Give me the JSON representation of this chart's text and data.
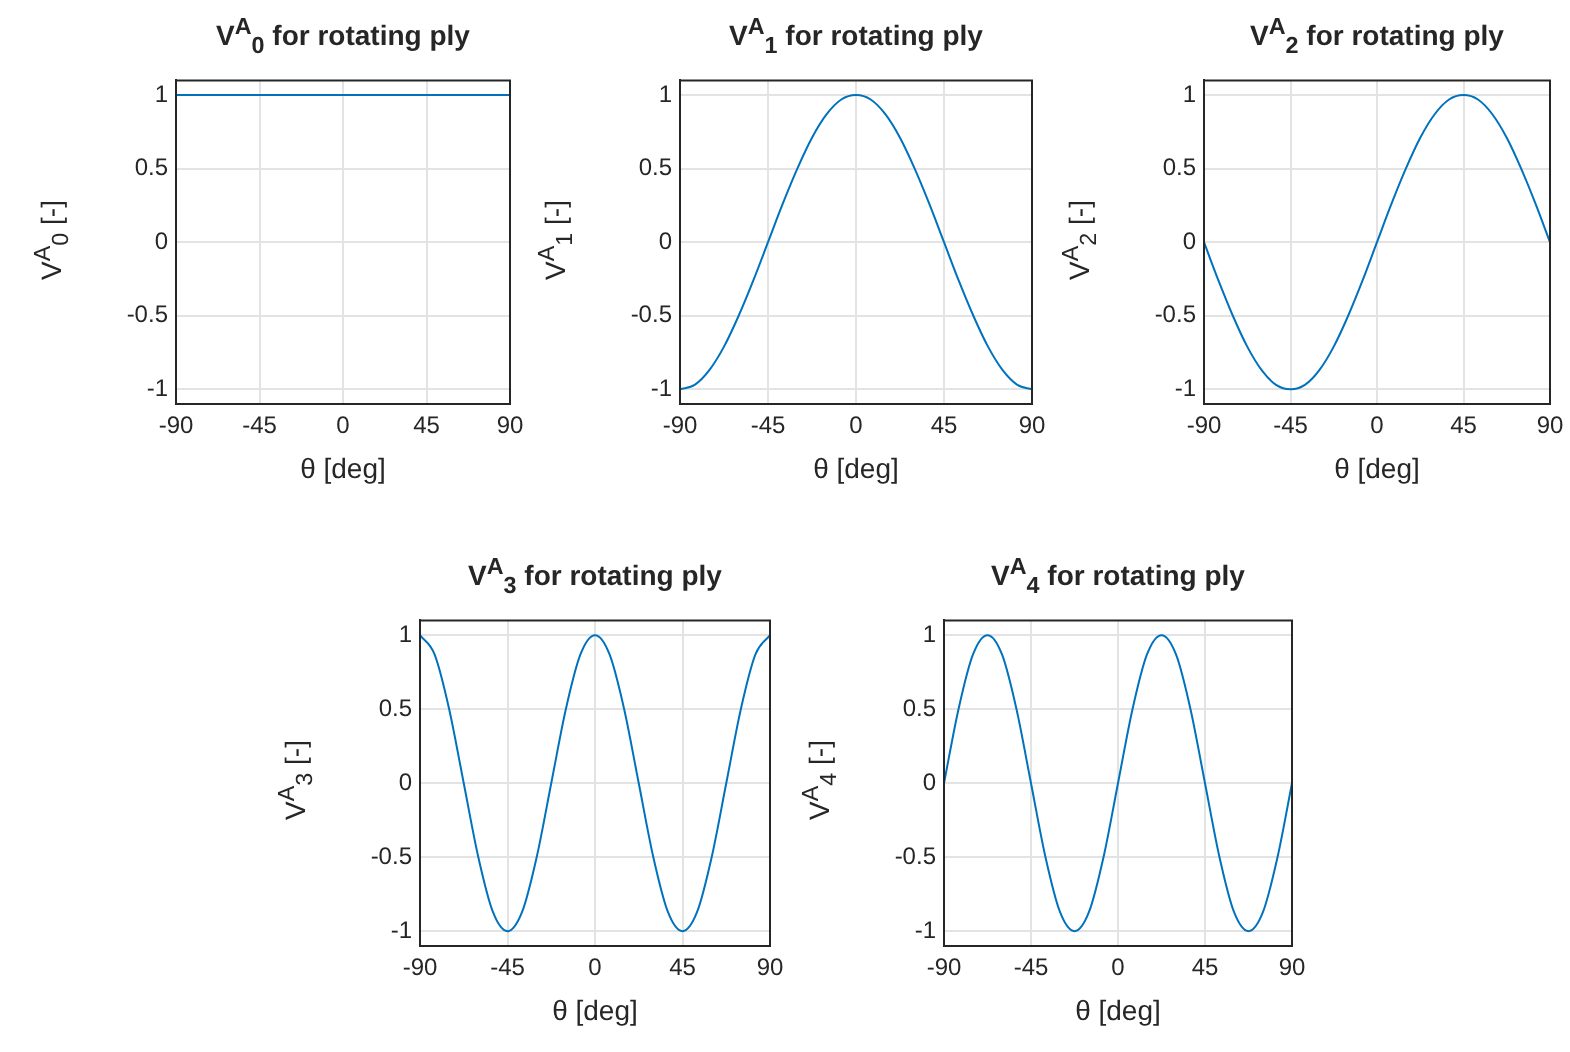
{
  "chart_data": [
    {
      "type": "line",
      "title": "V$^{A}$$_{0}$ for rotating ply",
      "xlabel": "θ [deg]",
      "ylabel": "V$^{A}$$_{0}$ [-]",
      "x": [
        -90,
        90
      ],
      "series": [
        {
          "color": "#0072bd",
          "values": [
            1,
            1
          ]
        }
      ],
      "xlim": [
        -90,
        90
      ],
      "ylim": [
        -1.1,
        1.1
      ],
      "xticks": [
        -90,
        -45,
        0,
        45,
        90
      ],
      "yticks": [
        -1,
        -0.5,
        0,
        0.5,
        1
      ],
      "grid": true
    },
    {
      "type": "line",
      "title": "V$^{A}$$_{1}$ for rotating ply",
      "xlabel": "θ [deg]",
      "ylabel": "V$^{A}$$_{1}$ [-]",
      "x": [
        -90,
        -82.5,
        -75,
        -67.5,
        -60,
        -52.5,
        -45,
        -37.5,
        -30,
        -22.5,
        -15,
        -7.5,
        0,
        7.5,
        15,
        22.5,
        30,
        37.5,
        45,
        52.5,
        60,
        67.5,
        75,
        82.5,
        90
      ],
      "series": [
        {
          "color": "#0072bd",
          "values": [
            -1,
            -0.97,
            -0.87,
            -0.71,
            -0.5,
            -0.26,
            0,
            0.26,
            0.5,
            0.71,
            0.87,
            0.97,
            1,
            0.97,
            0.87,
            0.71,
            0.5,
            0.26,
            0,
            -0.26,
            -0.5,
            -0.71,
            -0.87,
            -0.97,
            -1
          ]
        }
      ],
      "xlim": [
        -90,
        90
      ],
      "ylim": [
        -1.1,
        1.1
      ],
      "xticks": [
        -90,
        -45,
        0,
        45,
        90
      ],
      "yticks": [
        -1,
        -0.5,
        0,
        0.5,
        1
      ],
      "grid": true
    },
    {
      "type": "line",
      "title": "V$^{A}$$_{2}$ for rotating ply",
      "xlabel": "θ [deg]",
      "ylabel": "V$^{A}$$_{2}$ [-]",
      "x": [
        -90,
        -82.5,
        -75,
        -67.5,
        -60,
        -52.5,
        -45,
        -37.5,
        -30,
        -22.5,
        -15,
        -7.5,
        0,
        7.5,
        15,
        22.5,
        30,
        37.5,
        45,
        52.5,
        60,
        67.5,
        75,
        82.5,
        90
      ],
      "series": [
        {
          "color": "#0072bd",
          "values": [
            0,
            -0.26,
            -0.5,
            -0.71,
            -0.87,
            -0.97,
            -1,
            -0.97,
            -0.87,
            -0.71,
            -0.5,
            -0.26,
            0,
            0.26,
            0.5,
            0.71,
            0.87,
            0.97,
            1,
            0.97,
            0.87,
            0.71,
            0.5,
            0.26,
            0
          ]
        }
      ],
      "xlim": [
        -90,
        90
      ],
      "ylim": [
        -1.1,
        1.1
      ],
      "xticks": [
        -90,
        -45,
        0,
        45,
        90
      ],
      "yticks": [
        -1,
        -0.5,
        0,
        0.5,
        1
      ],
      "grid": true
    },
    {
      "type": "line",
      "title": "V$^{A}$$_{3}$ for rotating ply",
      "xlabel": "θ [deg]",
      "ylabel": "V$^{A}$$_{3}$ [-]",
      "x": [
        -90,
        -82.5,
        -75,
        -67.5,
        -60,
        -52.5,
        -45,
        -37.5,
        -30,
        -22.5,
        -15,
        -7.5,
        0,
        7.5,
        15,
        22.5,
        30,
        37.5,
        45,
        52.5,
        60,
        67.5,
        75,
        82.5,
        90
      ],
      "series": [
        {
          "color": "#0072bd",
          "values": [
            1,
            0.87,
            0.5,
            0,
            -0.5,
            -0.87,
            -1,
            -0.87,
            -0.5,
            0,
            0.5,
            0.87,
            1,
            0.87,
            0.5,
            0,
            -0.5,
            -0.87,
            -1,
            -0.87,
            -0.5,
            0,
            0.5,
            0.87,
            1
          ]
        }
      ],
      "xlim": [
        -90,
        90
      ],
      "ylim": [
        -1.1,
        1.1
      ],
      "xticks": [
        -90,
        -45,
        0,
        45,
        90
      ],
      "yticks": [
        -1,
        -0.5,
        0,
        0.5,
        1
      ],
      "grid": true
    },
    {
      "type": "line",
      "title": "V$^{A}$$_{4}$ for rotating ply",
      "xlabel": "θ [deg]",
      "ylabel": "V$^{A}$$_{4}$ [-]",
      "x": [
        -90,
        -82.5,
        -75,
        -67.5,
        -60,
        -52.5,
        -45,
        -37.5,
        -30,
        -22.5,
        -15,
        -7.5,
        0,
        7.5,
        15,
        22.5,
        30,
        37.5,
        45,
        52.5,
        60,
        67.5,
        75,
        82.5,
        90
      ],
      "series": [
        {
          "color": "#0072bd",
          "values": [
            0,
            0.5,
            0.87,
            1,
            0.87,
            0.5,
            0,
            -0.5,
            -0.87,
            -1,
            -0.87,
            -0.5,
            0,
            0.5,
            0.87,
            1,
            0.87,
            0.5,
            0,
            -0.5,
            -0.87,
            -1,
            -0.87,
            -0.5,
            0
          ]
        }
      ],
      "xlim": [
        -90,
        90
      ],
      "ylim": [
        -1.1,
        1.1
      ],
      "xticks": [
        -90,
        -45,
        0,
        45,
        90
      ],
      "yticks": [
        -1,
        -0.5,
        0,
        0.5,
        1
      ],
      "grid": true
    }
  ]
}
